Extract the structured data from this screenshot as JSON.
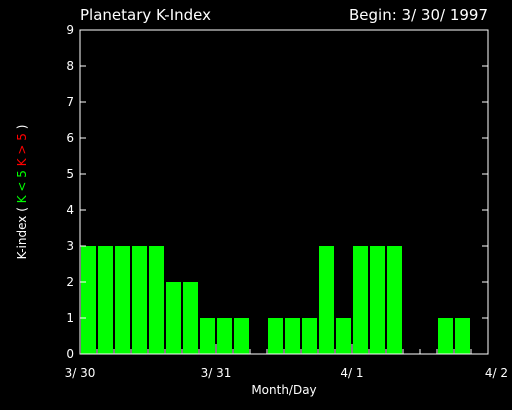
{
  "chart_data": {
    "type": "bar",
    "title": "Planetary K-Index",
    "subtitle": "Begin: 3/ 30/ 1997",
    "xlabel": "Month/Day",
    "ylabel_parts": [
      {
        "text": "K-index",
        "color": "#ffffff"
      },
      {
        "text": "(",
        "color": "#ffffff"
      },
      {
        "text": "K < 5",
        "color": "#00ff00"
      },
      {
        "text": "K > 5",
        "color": "#ff0000"
      },
      {
        "text": ")",
        "color": "#ffffff"
      }
    ],
    "ylim": [
      0,
      9
    ],
    "yticks": [
      0,
      1,
      2,
      3,
      4,
      5,
      6,
      7,
      8,
      9
    ],
    "x_range_days": [
      0,
      3
    ],
    "xtick_labels": [
      {
        "day": 0,
        "label": "3/ 30"
      },
      {
        "day": 1,
        "label": "3/ 31"
      },
      {
        "day": 2,
        "label": "4/ 1"
      },
      {
        "day": 3,
        "label": "4/ 2"
      }
    ],
    "bar_interval_hours": 3,
    "values": [
      3,
      3,
      3,
      3,
      3,
      2,
      2,
      1,
      1,
      1,
      0,
      1,
      1,
      1,
      3,
      1,
      3,
      3,
      3,
      0,
      0,
      1,
      1,
      0
    ],
    "colors": {
      "low": "#00ff00",
      "high": "#ff0000",
      "axes": "#ffffff",
      "background": "#000000"
    }
  }
}
